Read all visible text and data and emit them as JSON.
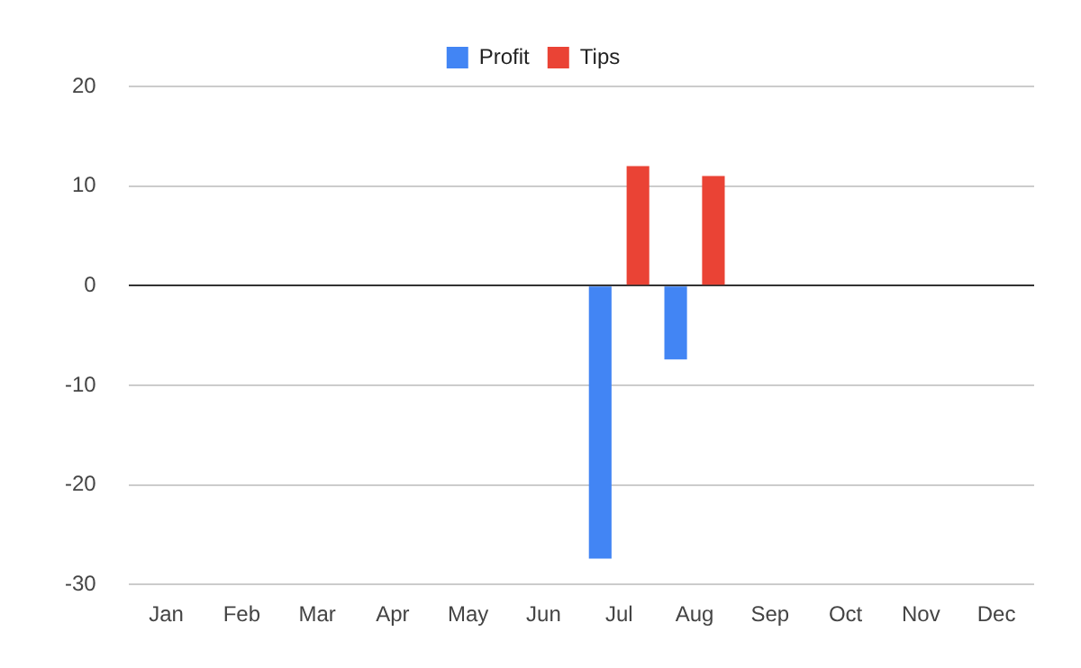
{
  "chart_data": {
    "type": "bar",
    "categories": [
      "Jan",
      "Feb",
      "Mar",
      "Apr",
      "May",
      "Jun",
      "Jul",
      "Aug",
      "Sep",
      "Oct",
      "Nov",
      "Dec"
    ],
    "series": [
      {
        "name": "Profit",
        "color": "#4285f4",
        "values": [
          null,
          null,
          null,
          null,
          null,
          null,
          -27.4,
          -7.4,
          null,
          null,
          null,
          null
        ]
      },
      {
        "name": "Tips",
        "color": "#ea4335",
        "values": [
          null,
          null,
          null,
          null,
          null,
          null,
          12,
          11,
          null,
          null,
          null,
          null
        ]
      }
    ],
    "ylim": [
      -30,
      20
    ],
    "yticks": [
      -30,
      -20,
      -10,
      0,
      10,
      20
    ],
    "grid": "y",
    "legend": "top"
  }
}
